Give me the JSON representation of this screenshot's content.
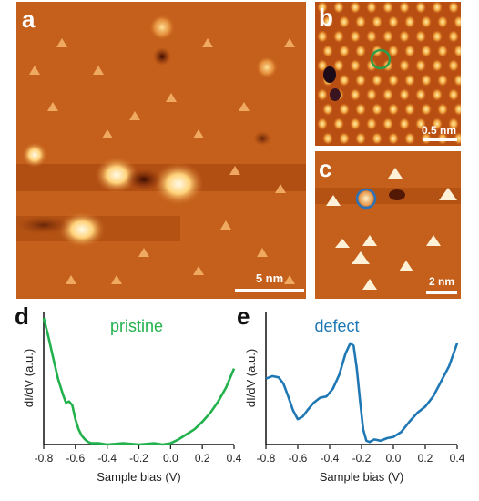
{
  "figure": {
    "panel_labels": {
      "a": "a",
      "b": "b",
      "c": "c",
      "d": "d",
      "e": "e"
    },
    "scale_bars": {
      "a": "5 nm",
      "b": "0.5 nm",
      "c": "2 nm"
    },
    "stm_color": "#c8641e",
    "marker_colors": {
      "b": "#2e9d4a",
      "c": "#2b72b8"
    }
  },
  "chart_data": [
    {
      "type": "line",
      "panel": "d",
      "series": [
        {
          "name": "pristine",
          "color": "#22b14c",
          "x": [
            -0.8,
            -0.77,
            -0.74,
            -0.71,
            -0.68,
            -0.66,
            -0.64,
            -0.62,
            -0.6,
            -0.58,
            -0.56,
            -0.54,
            -0.52,
            -0.5,
            -0.45,
            -0.4,
            -0.3,
            -0.2,
            -0.1,
            -0.05,
            0.0,
            0.05,
            0.1,
            0.15,
            0.2,
            0.25,
            0.3,
            0.35,
            0.4
          ],
          "y": [
            1.0,
            0.85,
            0.68,
            0.52,
            0.4,
            0.33,
            0.34,
            0.31,
            0.2,
            0.12,
            0.07,
            0.04,
            0.02,
            0.01,
            0.01,
            0.0,
            0.01,
            0.0,
            0.01,
            0.0,
            0.01,
            0.04,
            0.08,
            0.12,
            0.18,
            0.25,
            0.34,
            0.45,
            0.6
          ]
        }
      ],
      "xlabel": "Sample bias (V)",
      "ylabel": "dI/dV (a.u.)",
      "xlim": [
        -0.8,
        0.4
      ],
      "ylim": [
        0,
        1.05
      ],
      "xticks": [
        "-0.8",
        "-0.6",
        "-0.4",
        "-0.2",
        "0.0",
        "0.2",
        "0.4"
      ],
      "xtick_values": [
        -0.8,
        -0.6,
        -0.4,
        -0.2,
        0.0,
        0.2,
        0.4
      ]
    },
    {
      "type": "line",
      "panel": "e",
      "series": [
        {
          "name": "defect",
          "color": "#1f77b4",
          "x": [
            -0.8,
            -0.76,
            -0.72,
            -0.69,
            -0.66,
            -0.63,
            -0.6,
            -0.57,
            -0.54,
            -0.5,
            -0.46,
            -0.42,
            -0.38,
            -0.34,
            -0.3,
            -0.27,
            -0.25,
            -0.23,
            -0.21,
            -0.19,
            -0.17,
            -0.15,
            -0.12,
            -0.08,
            -0.04,
            0.0,
            0.05,
            0.1,
            0.15,
            0.2,
            0.25,
            0.3,
            0.35,
            0.4
          ],
          "y": [
            0.52,
            0.54,
            0.53,
            0.48,
            0.38,
            0.27,
            0.2,
            0.22,
            0.27,
            0.33,
            0.37,
            0.38,
            0.44,
            0.55,
            0.72,
            0.8,
            0.78,
            0.6,
            0.35,
            0.12,
            0.03,
            0.02,
            0.04,
            0.03,
            0.05,
            0.06,
            0.1,
            0.18,
            0.25,
            0.3,
            0.38,
            0.5,
            0.62,
            0.8
          ]
        }
      ],
      "xlabel": "Sample bias (V)",
      "ylabel": "dI/dV (a.u.)",
      "xlim": [
        -0.8,
        0.4
      ],
      "ylim": [
        0,
        1.05
      ],
      "xticks": [
        "-0.8",
        "-0.6",
        "-0.4",
        "-0.2",
        "0.0",
        "0.2",
        "0.4"
      ],
      "xtick_values": [
        -0.8,
        -0.6,
        -0.4,
        -0.2,
        0.0,
        0.2,
        0.4
      ]
    }
  ]
}
